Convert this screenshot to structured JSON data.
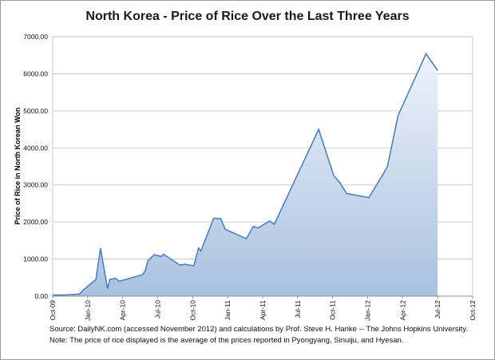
{
  "chart_data": {
    "type": "area",
    "title": "North Korea - Price of Rice Over the Last Three Years",
    "ylabel": "Price of Rice in North Korean Won",
    "xlabel": "",
    "ylim": [
      0,
      7000
    ],
    "yticks": [
      "0.00",
      "1000.00",
      "2000.00",
      "3000.00",
      "4000.00",
      "5000.00",
      "6000.00",
      "7000.00"
    ],
    "xticks": [
      "Oct-09",
      "Jan-10",
      "Apr-10",
      "Jul-10",
      "Oct-10",
      "Jan-11",
      "Apr-11",
      "Jul-11",
      "Oct-11",
      "Jan-12",
      "Apr-12",
      "Jul-12",
      "Oct-12"
    ],
    "grid": true,
    "series": [
      {
        "values_by_month_index": [
          [
            0,
            30
          ],
          [
            1,
            30
          ],
          [
            2,
            50
          ],
          [
            2.3,
            60
          ],
          [
            2.6,
            160
          ],
          [
            3.7,
            450
          ],
          [
            4.1,
            1290
          ],
          [
            4.7,
            200
          ],
          [
            4.9,
            450
          ],
          [
            5.4,
            480
          ],
          [
            5.7,
            400
          ],
          [
            7.7,
            580
          ],
          [
            7.95,
            700
          ],
          [
            8.15,
            950
          ],
          [
            8.7,
            1120
          ],
          [
            9.3,
            1070
          ],
          [
            9.5,
            1130
          ],
          [
            10.9,
            840
          ],
          [
            11.3,
            860
          ],
          [
            12.1,
            820
          ],
          [
            12.5,
            1300
          ],
          [
            12.7,
            1220
          ],
          [
            13.8,
            2100
          ],
          [
            14.4,
            2090
          ],
          [
            14.8,
            1800
          ],
          [
            16.6,
            1550
          ],
          [
            17.2,
            1880
          ],
          [
            17.6,
            1840
          ],
          [
            18.6,
            2030
          ],
          [
            19.0,
            1940
          ],
          [
            22.8,
            4500
          ],
          [
            24.1,
            3250
          ],
          [
            24.6,
            3070
          ],
          [
            25.2,
            2770
          ],
          [
            27.1,
            2660
          ],
          [
            28.3,
            3280
          ],
          [
            28.7,
            3500
          ],
          [
            29.6,
            4870
          ],
          [
            32.0,
            6540
          ],
          [
            33.0,
            6090
          ]
        ]
      }
    ],
    "colors": {
      "line": "#4f81bd",
      "fill_top": "#eef3fa",
      "fill_bottom": "#a9c1e0",
      "grid": "#bfbfbf"
    }
  },
  "notes": {
    "source": "Source: DailyNK.com (accessed November 2012) and calculations by Prof. Steve H. Hanke -- The Johns Hopkins University.",
    "note": "Note: The price of rice displayed is the average  of the prices reported in Pyongyang, Sinuiju, and Hyesan."
  }
}
